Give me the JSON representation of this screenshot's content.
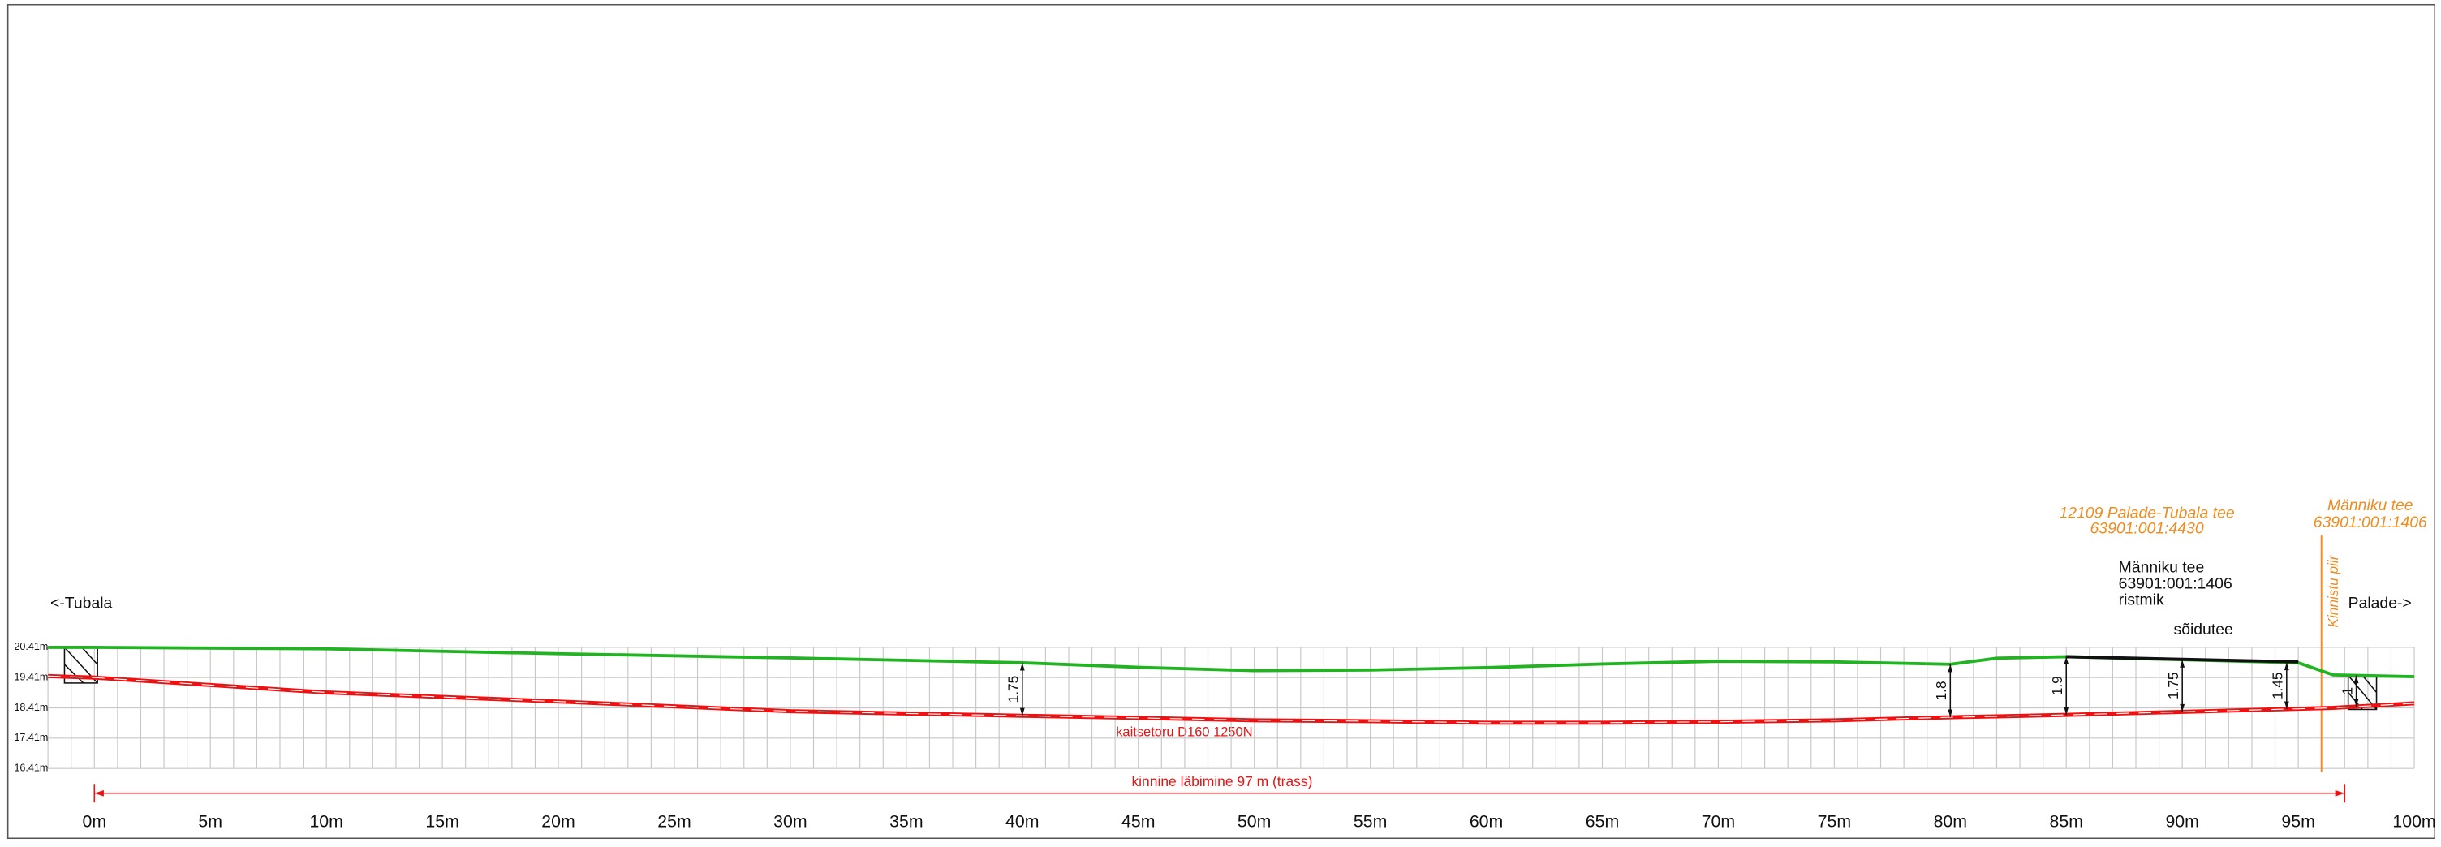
{
  "chart_data": {
    "type": "line",
    "x": [
      -2,
      0,
      10,
      20,
      30,
      40,
      45,
      50,
      55,
      60,
      65,
      70,
      75,
      80,
      82,
      85,
      95,
      96.5,
      100
    ],
    "series": [
      {
        "color": "#22b322",
        "values": [
          20.41,
          20.41,
          20.36,
          20.2,
          20.06,
          19.9,
          19.75,
          19.64,
          19.66,
          19.74,
          19.86,
          19.95,
          19.93,
          19.85,
          20.05,
          20.1,
          19.9,
          19.5,
          19.44
        ]
      },
      {
        "color": "#ee1111",
        "values": [
          19.46,
          19.41,
          18.92,
          18.62,
          18.3,
          18.15,
          18.08,
          18.0,
          17.97,
          17.92,
          17.92,
          17.95,
          18.0,
          18.1,
          18.13,
          18.18,
          18.38,
          18.41,
          18.56
        ]
      },
      {
        "color": "#111111",
        "values": [
          null,
          null,
          null,
          null,
          null,
          null,
          null,
          null,
          null,
          null,
          null,
          null,
          null,
          null,
          null,
          20.1,
          19.93,
          null,
          null
        ]
      }
    ],
    "xlim": [
      -2,
      100
    ],
    "ylim": [
      16.41,
      20.41
    ],
    "xticks": [
      {
        "value": 0,
        "label": "0m"
      },
      {
        "value": 5,
        "label": "5m"
      },
      {
        "value": 10,
        "label": "10m"
      },
      {
        "value": 15,
        "label": "15m"
      },
      {
        "value": 20,
        "label": "20m"
      },
      {
        "value": 25,
        "label": "25m"
      },
      {
        "value": 30,
        "label": "30m"
      },
      {
        "value": 35,
        "label": "35m"
      },
      {
        "value": 40,
        "label": "40m"
      },
      {
        "value": 45,
        "label": "45m"
      },
      {
        "value": 50,
        "label": "50m"
      },
      {
        "value": 55,
        "label": "55m"
      },
      {
        "value": 60,
        "label": "60m"
      },
      {
        "value": 65,
        "label": "65m"
      },
      {
        "value": 70,
        "label": "70m"
      },
      {
        "value": 75,
        "label": "75m"
      },
      {
        "value": 80,
        "label": "80m"
      },
      {
        "value": 85,
        "label": "85m"
      },
      {
        "value": 90,
        "label": "90m"
      },
      {
        "value": 95,
        "label": "95m"
      },
      {
        "value": 100,
        "label": "100m"
      }
    ],
    "yticks": [
      {
        "value": 20.41,
        "label": "20.41m"
      },
      {
        "value": 19.41,
        "label": "19.41m"
      },
      {
        "value": 18.41,
        "label": "18.41m"
      },
      {
        "value": 17.41,
        "label": "17.41m"
      },
      {
        "value": 16.41,
        "label": "16.41m"
      }
    ],
    "depths": [
      {
        "x": 40,
        "value": 1.75
      },
      {
        "x": 80,
        "value": 1.8
      },
      {
        "x": 85,
        "value": 1.9
      },
      {
        "x": 90,
        "value": 1.75
      },
      {
        "x": 94.5,
        "value": 1.45
      },
      {
        "x": 97.5,
        "value": 1
      }
    ],
    "left_direction": "<-Tubala",
    "right_direction": "Palade->",
    "crossing": [
      "Männiku tee",
      "63901:001:1406",
      "ristmik"
    ],
    "road_surface": "sõidutee",
    "road_main": [
      "12109 Palade-Tubala tee",
      "63901:001:4430"
    ],
    "road_side": [
      "Männiku tee",
      "63901:001:1406"
    ],
    "boundary": {
      "label": "Kinnistu piir",
      "x": 96
    },
    "pipe": "kaitsetoru D160 1250N",
    "dimension": {
      "label": "kinnine läbimine 97 m (trass)",
      "from": 0,
      "to": 97
    }
  }
}
